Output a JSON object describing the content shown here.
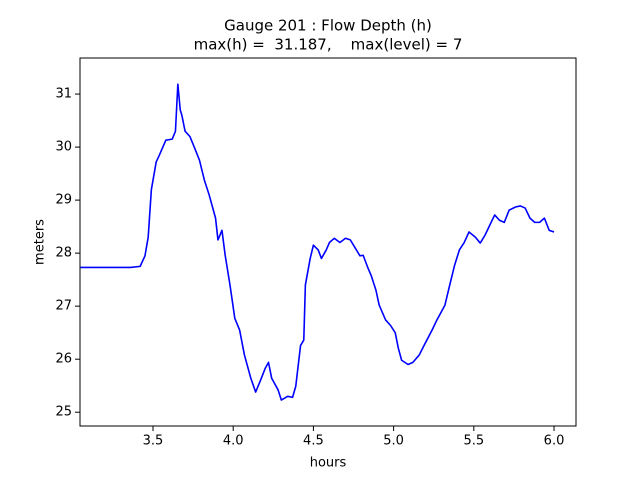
{
  "chart_data": {
    "type": "line",
    "title": [
      "Gauge 201 : Flow Depth (h)",
      "max(h) =  31.187,    max(level) = 7"
    ],
    "xlabel": "hours",
    "ylabel": "meters",
    "x": [
      3.045,
      3.36,
      3.42,
      3.45,
      3.47,
      3.49,
      3.52,
      3.54,
      3.58,
      3.62,
      3.64,
      3.655,
      3.67,
      3.68,
      3.7,
      3.73,
      3.76,
      3.79,
      3.82,
      3.85,
      3.89,
      3.905,
      3.93,
      3.95,
      3.98,
      4.01,
      4.04,
      4.07,
      4.11,
      4.14,
      4.17,
      4.2,
      4.22,
      4.24,
      4.28,
      4.3,
      4.34,
      4.37,
      4.39,
      4.42,
      4.44,
      4.45,
      4.48,
      4.5,
      4.53,
      4.55,
      4.58,
      4.6,
      4.63,
      4.665,
      4.7,
      4.73,
      4.76,
      4.79,
      4.81,
      4.84,
      4.86,
      4.89,
      4.91,
      4.95,
      4.98,
      5.01,
      5.03,
      5.05,
      5.09,
      5.12,
      5.16,
      5.19,
      5.24,
      5.27,
      5.32,
      5.35,
      5.38,
      5.41,
      5.44,
      5.47,
      5.51,
      5.54,
      5.57,
      5.6,
      5.63,
      5.66,
      5.69,
      5.72,
      5.76,
      5.79,
      5.82,
      5.85,
      5.88,
      5.91,
      5.94,
      5.97,
      6.0
    ],
    "series": [
      {
        "name": "h",
        "color": "#0000ff",
        "values": [
          27.73,
          27.73,
          27.75,
          27.95,
          28.3,
          29.2,
          29.72,
          29.85,
          30.13,
          30.15,
          30.3,
          31.187,
          30.7,
          30.6,
          30.3,
          30.2,
          29.98,
          29.75,
          29.38,
          29.1,
          28.66,
          28.25,
          28.43,
          27.96,
          27.4,
          26.77,
          26.55,
          26.08,
          25.64,
          25.38,
          25.6,
          25.83,
          25.94,
          25.64,
          25.42,
          25.23,
          25.3,
          25.28,
          25.49,
          26.26,
          26.36,
          27.4,
          27.9,
          28.15,
          28.06,
          27.9,
          28.06,
          28.2,
          28.28,
          28.2,
          28.28,
          28.25,
          28.1,
          27.95,
          27.96,
          27.72,
          27.58,
          27.3,
          27.02,
          26.74,
          26.64,
          26.5,
          26.2,
          25.98,
          25.9,
          25.94,
          26.08,
          26.26,
          26.55,
          26.74,
          27.02,
          27.4,
          27.77,
          28.06,
          28.2,
          28.4,
          28.3,
          28.19,
          28.34,
          28.53,
          28.72,
          28.62,
          28.58,
          28.81,
          28.87,
          28.89,
          28.85,
          28.66,
          28.58,
          28.58,
          28.66,
          28.43,
          28.4
        ]
      }
    ],
    "xlim": [
      3.045,
      6.137
    ],
    "ylim": [
      24.74,
      31.68
    ],
    "xticks": [
      3.5,
      {
        "value": 4,
        "label": "4.0"
      },
      4.5,
      {
        "value": 5,
        "label": "5.0"
      },
      5.5,
      {
        "value": 6,
        "label": "6.0"
      }
    ],
    "yticks": [
      25,
      26,
      27,
      28,
      29,
      30,
      31
    ],
    "grid": false
  }
}
